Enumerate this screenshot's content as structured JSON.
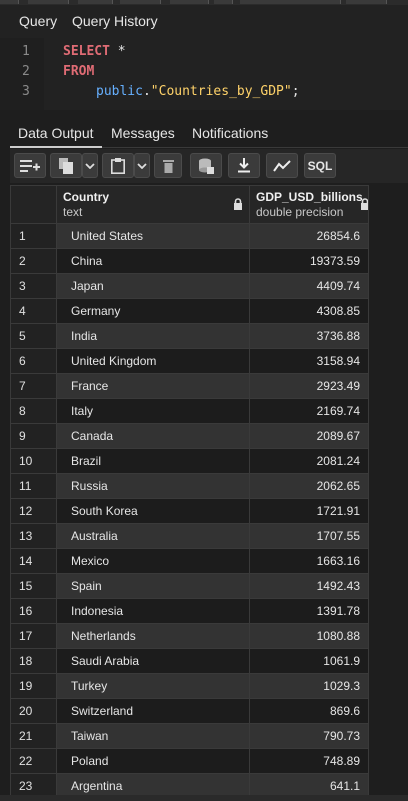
{
  "query_tabs": [
    {
      "label": "Query",
      "active": true
    },
    {
      "label": "Query History",
      "active": false
    }
  ],
  "editor": {
    "lines": [
      "1",
      "2",
      "3"
    ],
    "kw_select": "SELECT",
    "star": "*",
    "kw_from": "FROM",
    "schema": "public",
    "dot": ".",
    "table": "\"Countries_by_GDP\"",
    "semicolon": ";"
  },
  "result_tabs": [
    {
      "label": "Data Output",
      "active": true
    },
    {
      "label": "Messages",
      "active": false
    },
    {
      "label": "Notifications",
      "active": false
    }
  ],
  "toolbar": {
    "icons": [
      "add-row-icon",
      "copy-icon",
      "chevron-down-icon",
      "paste-icon",
      "chevron-down-icon",
      "delete-icon",
      "save-data-icon",
      "download-icon",
      "graph-icon"
    ],
    "sql_label": "SQL"
  },
  "columns": [
    {
      "name": "Country",
      "type": "text"
    },
    {
      "name": "GDP_USD_billions",
      "type": "double precision"
    }
  ],
  "rows": [
    {
      "n": "1",
      "country": "United States",
      "gdp": "26854.6"
    },
    {
      "n": "2",
      "country": "China",
      "gdp": "19373.59"
    },
    {
      "n": "3",
      "country": "Japan",
      "gdp": "4409.74"
    },
    {
      "n": "4",
      "country": "Germany",
      "gdp": "4308.85"
    },
    {
      "n": "5",
      "country": "India",
      "gdp": "3736.88"
    },
    {
      "n": "6",
      "country": "United Kingdom",
      "gdp": "3158.94"
    },
    {
      "n": "7",
      "country": "France",
      "gdp": "2923.49"
    },
    {
      "n": "8",
      "country": "Italy",
      "gdp": "2169.74"
    },
    {
      "n": "9",
      "country": "Canada",
      "gdp": "2089.67"
    },
    {
      "n": "10",
      "country": "Brazil",
      "gdp": "2081.24"
    },
    {
      "n": "11",
      "country": "Russia",
      "gdp": "2062.65"
    },
    {
      "n": "12",
      "country": "South Korea",
      "gdp": "1721.91"
    },
    {
      "n": "13",
      "country": "Australia",
      "gdp": "1707.55"
    },
    {
      "n": "14",
      "country": "Mexico",
      "gdp": "1663.16"
    },
    {
      "n": "15",
      "country": "Spain",
      "gdp": "1492.43"
    },
    {
      "n": "16",
      "country": "Indonesia",
      "gdp": "1391.78"
    },
    {
      "n": "17",
      "country": "Netherlands",
      "gdp": "1080.88"
    },
    {
      "n": "18",
      "country": "Saudi Arabia",
      "gdp": "1061.9"
    },
    {
      "n": "19",
      "country": "Turkey",
      "gdp": "1029.3"
    },
    {
      "n": "20",
      "country": "Switzerland",
      "gdp": "869.6"
    },
    {
      "n": "21",
      "country": "Taiwan",
      "gdp": "790.73"
    },
    {
      "n": "22",
      "country": "Poland",
      "gdp": "748.89"
    },
    {
      "n": "23",
      "country": "Argentina",
      "gdp": "641.1"
    }
  ]
}
